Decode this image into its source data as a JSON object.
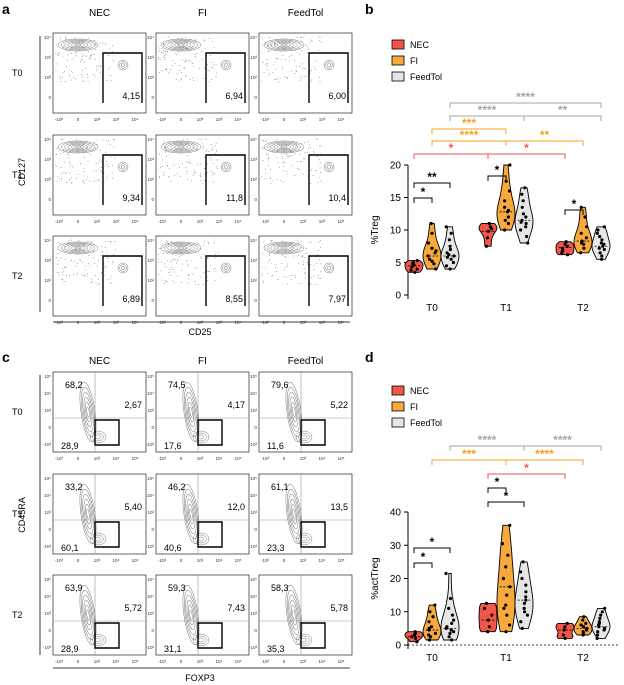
{
  "figure": {
    "panel_labels": [
      "a",
      "b",
      "c",
      "d"
    ],
    "flow_columns": [
      "NEC",
      "FI",
      "FeedTol"
    ],
    "flow_rows": [
      "T0",
      "T1",
      "T2"
    ],
    "flow_axis_ticks": [
      "-10²",
      "0",
      "10²",
      "10³",
      "10⁴"
    ],
    "flow_y_ticks_a": [
      "10⁴",
      "10³",
      "10²",
      "0"
    ],
    "flow_y_ticks_c": [
      "10⁵",
      "10⁴",
      "10³",
      "0",
      "-10³"
    ],
    "flow_x_ticks_c": [
      "-10³",
      "0",
      "10³",
      "10⁴",
      "10⁵"
    ],
    "panel_a": {
      "xlabel": "CD25",
      "ylabel": "CD127",
      "gate_values": [
        [
          "4,15",
          "6,94",
          "6,00"
        ],
        [
          "9,34",
          "11,8",
          "10,4"
        ],
        [
          "6,89",
          "8,55",
          "7,97"
        ]
      ]
    },
    "panel_c": {
      "xlabel": "FOXP3",
      "ylabel": "CD45RA",
      "upper_left": [
        [
          "68,2",
          "74,5",
          "79,6"
        ],
        [
          "33,2",
          "46,2",
          "61,1"
        ],
        [
          "63,9",
          "59,3",
          "58,3"
        ]
      ],
      "right_gate": [
        [
          "2,67",
          "4,17",
          "5,22"
        ],
        [
          "5,40",
          "12,0",
          "13,5"
        ],
        [
          "5,72",
          "7,43",
          "5,78"
        ]
      ],
      "lower_left": [
        [
          "28,9",
          "17,6",
          "11,6"
        ],
        [
          "60,1",
          "40,6",
          "23,3"
        ],
        [
          "28,9",
          "31,1",
          "35,3"
        ]
      ]
    }
  },
  "chart_data": [
    {
      "panel": "b",
      "type": "violin",
      "title": "",
      "xlabel": "",
      "ylabel": "%Treg",
      "ylim": [
        0,
        20
      ],
      "yticks": [
        "0",
        "5",
        "10",
        "15",
        "20"
      ],
      "categories": [
        "T0",
        "T1",
        "T2"
      ],
      "legend": [
        "NEC",
        "FI",
        "FeedTol"
      ],
      "colors": [
        "#f0574a",
        "#f7a93b",
        "#e6e6e6"
      ],
      "series": [
        {
          "name": "NEC",
          "medians": [
            4.5,
            9.8,
            7.3
          ],
          "values": [
            [
              3.5,
              4.0,
              4.3,
              4.8,
              5.0,
              5.3,
              3.8,
              4.6
            ],
            [
              7.5,
              8.8,
              9.8,
              10.5,
              11.0,
              10.2
            ],
            [
              6.2,
              6.8,
              7.2,
              7.5,
              7.8,
              8.2,
              6.5
            ]
          ]
        },
        {
          "name": "FI",
          "medians": [
            6.0,
            12.8,
            8.3
          ],
          "values": [
            [
              4.0,
              4.8,
              5.5,
              6.0,
              6.5,
              7.2,
              8.0,
              9.5,
              11.0,
              5.2,
              6.8
            ],
            [
              10.0,
              11.0,
              12.0,
              12.8,
              13.5,
              14.5,
              16.0,
              17.5,
              20.0,
              11.5,
              13.0
            ],
            [
              6.5,
              7.2,
              7.8,
              8.3,
              8.8,
              9.5,
              10.5,
              12.0,
              13.5,
              8.0
            ]
          ]
        },
        {
          "name": "FeedTol",
          "medians": [
            6.0,
            11.5,
            7.5
          ],
          "values": [
            [
              4.0,
              4.5,
              5.0,
              5.5,
              6.0,
              6.5,
              7.0,
              7.5,
              8.5,
              9.5,
              10.5,
              5.8,
              6.2
            ],
            [
              8.0,
              9.0,
              10.0,
              10.5,
              11.0,
              11.5,
              12.0,
              12.5,
              13.5,
              14.5,
              15.5,
              16.5,
              11.2
            ],
            [
              5.5,
              6.0,
              6.5,
              7.0,
              7.5,
              8.0,
              8.5,
              9.0,
              9.5,
              10.0,
              10.5,
              7.2,
              7.8
            ]
          ]
        }
      ],
      "significance": [
        {
          "label": "****",
          "color": "#a6a6a6"
        },
        {
          "label": "****",
          "color": "#a6a6a6"
        },
        {
          "label": "**",
          "color": "#a6a6a6"
        },
        {
          "label": "***",
          "color": "#f7a021"
        },
        {
          "label": "****",
          "color": "#f7a021"
        },
        {
          "label": "**",
          "color": "#f7a021"
        },
        {
          "label": "*",
          "color": "#f0574a"
        },
        {
          "label": "*",
          "color": "#f0574a"
        },
        {
          "label": "*",
          "color": "#000000"
        },
        {
          "label": "**",
          "color": "#000000"
        },
        {
          "label": "*",
          "color": "#000000"
        },
        {
          "label": "*",
          "color": "#000000"
        }
      ]
    },
    {
      "panel": "d",
      "type": "violin",
      "title": "",
      "xlabel": "",
      "ylabel": "%actTreg",
      "ylim": [
        0,
        40
      ],
      "yticks": [
        "0",
        "10",
        "20",
        "30",
        "40"
      ],
      "categories": [
        "T0",
        "T1",
        "T2"
      ],
      "legend": [
        "NEC",
        "FI",
        "FeedTol"
      ],
      "colors": [
        "#f0574a",
        "#f7a93b",
        "#e6e6e6"
      ],
      "series": [
        {
          "name": "NEC",
          "medians": [
            2.5,
            7.5,
            4.5
          ],
          "values": [
            [
              1.0,
              2.0,
              2.5,
              3.0,
              3.5,
              4.0
            ],
            [
              4.0,
              5.5,
              7.5,
              9.0,
              11.0,
              12.5
            ],
            [
              2.0,
              3.0,
              4.5,
              5.5,
              6.5
            ]
          ]
        },
        {
          "name": "FI",
          "medians": [
            4.5,
            17.5,
            5.0
          ],
          "values": [
            [
              1.5,
              2.5,
              3.5,
              4.5,
              5.5,
              7.0,
              8.5,
              10.0,
              12.0,
              3.0,
              5.0
            ],
            [
              4.0,
              6.0,
              9.0,
              12.0,
              15.0,
              17.5,
              20.0,
              23.5,
              27.0,
              30.5,
              36.0,
              11.0
            ],
            [
              3.0,
              4.0,
              4.5,
              5.0,
              5.5,
              6.0,
              6.5,
              7.5,
              8.5,
              3.5
            ]
          ]
        },
        {
          "name": "FeedTol",
          "medians": [
            5.0,
            13.5,
            5.5
          ],
          "values": [
            [
              1.5,
              2.5,
              3.5,
              4.5,
              5.0,
              5.5,
              6.5,
              7.5,
              9.0,
              11.0,
              14.0,
              21.5,
              4.0
            ],
            [
              5.0,
              7.0,
              9.0,
              11.0,
              12.5,
              13.5,
              14.5,
              16.0,
              18.0,
              20.0,
              22.0,
              25.0,
              10.0
            ],
            [
              2.0,
              3.0,
              4.0,
              5.0,
              5.5,
              6.0,
              6.5,
              7.0,
              8.0,
              9.0,
              10.0,
              11.0,
              4.5
            ]
          ]
        }
      ],
      "significance": [
        {
          "label": "****",
          "color": "#a6a6a6"
        },
        {
          "label": "****",
          "color": "#a6a6a6"
        },
        {
          "label": "***",
          "color": "#f7a021"
        },
        {
          "label": "****",
          "color": "#f7a021"
        },
        {
          "label": "*",
          "color": "#f0574a"
        },
        {
          "label": "*",
          "color": "#000000"
        },
        {
          "label": "*",
          "color": "#000000"
        },
        {
          "label": "*",
          "color": "#000000"
        },
        {
          "label": "*",
          "color": "#000000"
        }
      ]
    }
  ]
}
